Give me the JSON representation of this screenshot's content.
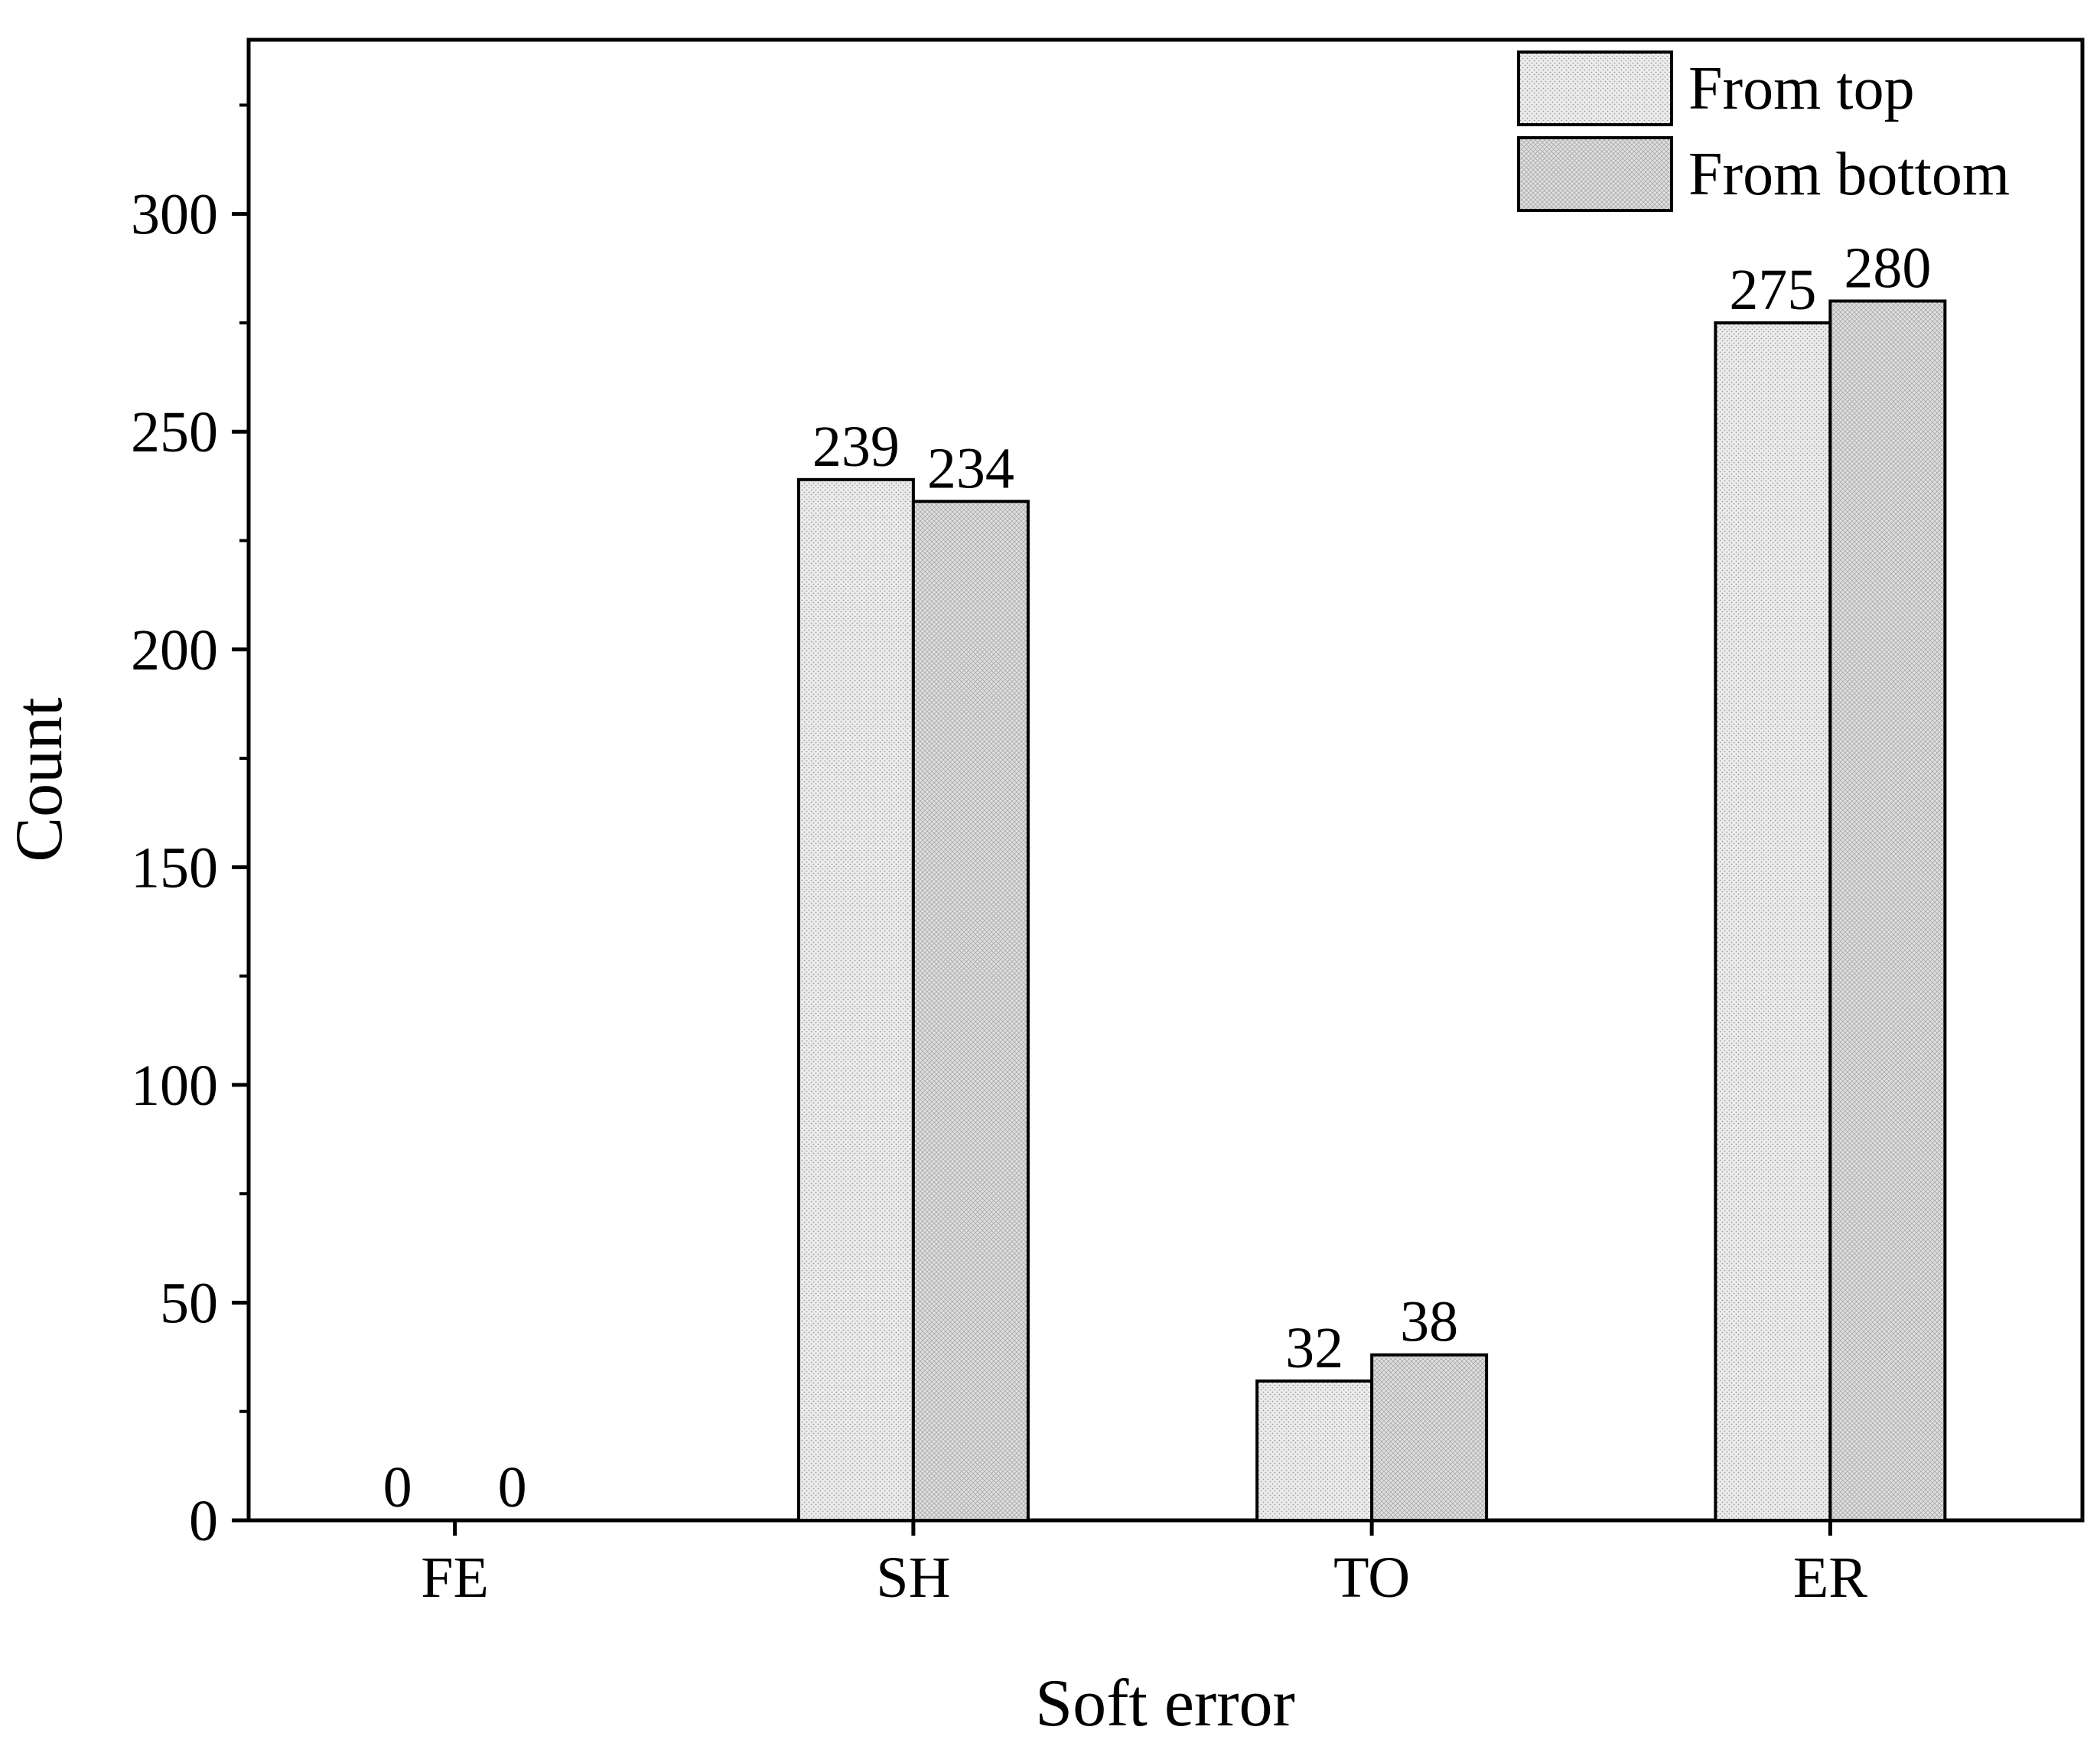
{
  "chart_data": {
    "type": "bar",
    "title": "",
    "xlabel": "Soft error",
    "ylabel": "Count",
    "categories": [
      "FE",
      "SH",
      "TO",
      "ER"
    ],
    "series": [
      {
        "name": "From top",
        "values": [
          0,
          239,
          32,
          275
        ],
        "color": "#e6e6e6",
        "pattern": "fine-dots"
      },
      {
        "name": "From bottom",
        "values": [
          0,
          234,
          38,
          280
        ],
        "color": "#dcdcdc",
        "pattern": "fine-crosshatch"
      }
    ],
    "ylim": [
      0,
      340
    ],
    "yticks": [
      0,
      50,
      100,
      150,
      200,
      250,
      300
    ],
    "y_minor_step": 25,
    "grid": false,
    "legend": {
      "position": "top-right"
    },
    "data_labels": true
  }
}
